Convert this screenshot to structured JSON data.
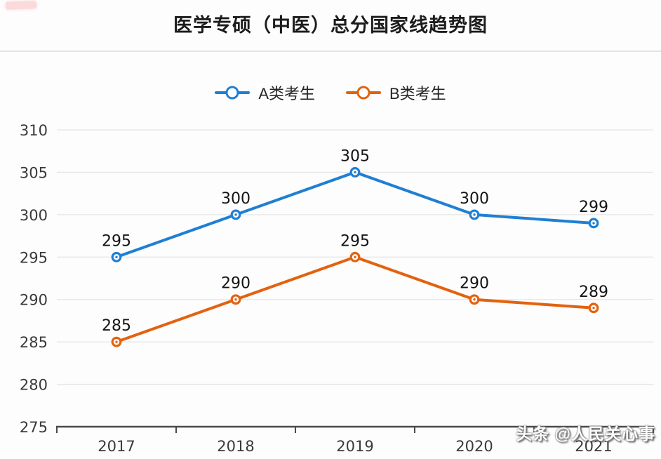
{
  "page": {
    "background": "#fdfdfd"
  },
  "title": "医学专硕（中医）总分国家线趋势图",
  "watermark": "头条 @人民关心事",
  "chart_data": {
    "type": "line",
    "title": "医学专硕（中医）总分国家线趋势图",
    "categories": [
      "2017",
      "2018",
      "2019",
      "2020",
      "2021"
    ],
    "series": [
      {
        "name": "A类考生",
        "color": "#1f7fd2",
        "values": [
          295,
          300,
          305,
          300,
          299
        ]
      },
      {
        "name": "B类考生",
        "color": "#e2620f",
        "values": [
          285,
          290,
          295,
          290,
          289
        ]
      }
    ],
    "ylim": [
      275,
      310
    ],
    "yticks": [
      275,
      280,
      285,
      290,
      295,
      300,
      305,
      310
    ],
    "xlabel": "",
    "ylabel": "",
    "grid": true,
    "legend_position": "top",
    "data_labels": true,
    "colors": {
      "grid_line": "#e5e5e8",
      "axis_line": "#4a4a4a",
      "axis_label": "#3a3a3a",
      "data_label": "#141414"
    }
  }
}
